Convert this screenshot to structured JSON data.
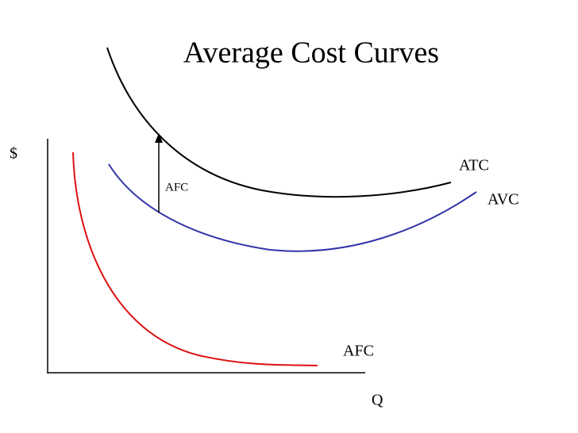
{
  "title": "Average Cost Curves",
  "axes": {
    "y_label": "$",
    "x_label": "Q"
  },
  "curves": [
    {
      "label": "ATC"
    },
    {
      "label": "AVC"
    },
    {
      "label": "AFC"
    }
  ],
  "arrow": {
    "label": "AFC"
  }
}
